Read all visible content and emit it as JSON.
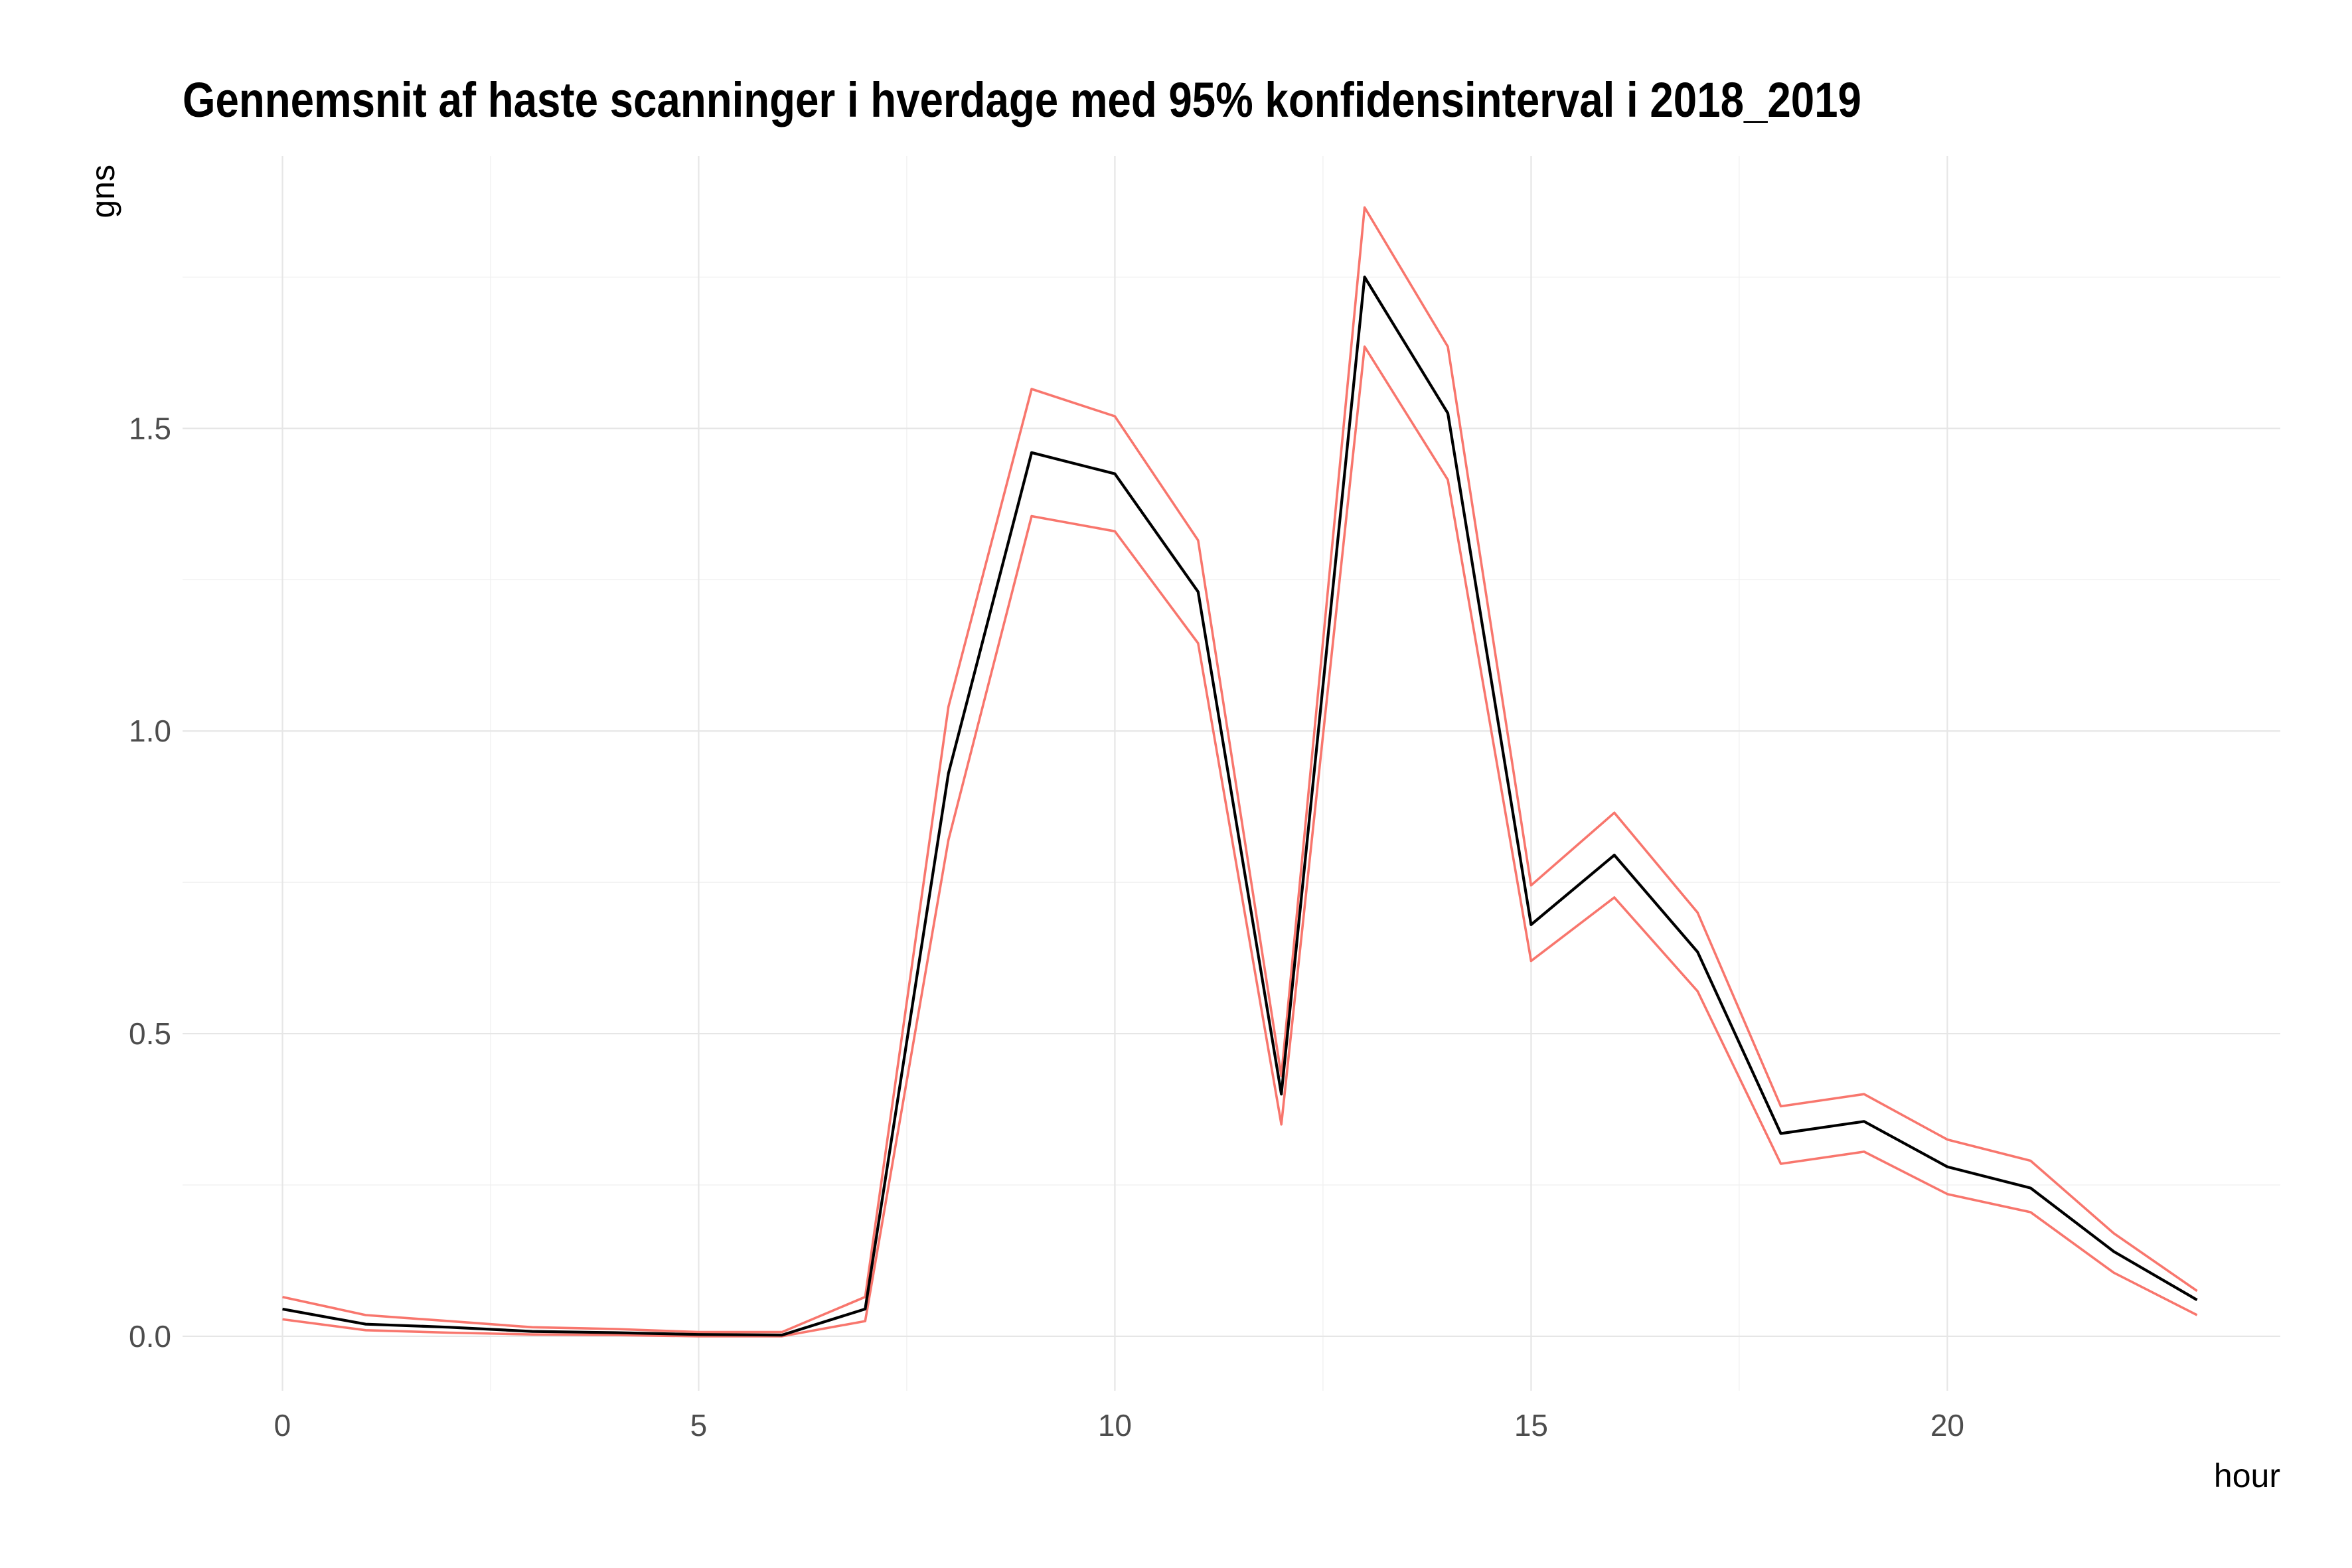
{
  "chart_data": {
    "type": "line",
    "title": "Gennemsnit af haste scanninger i hverdage med 95% konfidensinterval i 2018_2019",
    "xlabel": "hour",
    "ylabel": "gns",
    "xlim": [
      -1.2,
      24
    ],
    "ylim": [
      -0.09,
      1.95
    ],
    "x_ticks": [
      0,
      5,
      10,
      15,
      20
    ],
    "x_tick_labels": [
      "0",
      "5",
      "10",
      "15",
      "20"
    ],
    "y_ticks": [
      0.0,
      0.5,
      1.0,
      1.5
    ],
    "y_tick_labels": [
      "0.0",
      "0.5",
      "1.0",
      "1.5"
    ],
    "grid": true,
    "x": [
      0,
      1,
      2,
      3,
      4,
      5,
      6,
      7,
      8,
      9,
      10,
      11,
      12,
      13,
      14,
      15,
      16,
      17,
      18,
      19,
      20,
      21,
      22,
      23
    ],
    "series": [
      {
        "role": "mean",
        "color": "#000000",
        "values": [
          0.045,
          0.02,
          0.015,
          0.008,
          0.006,
          0.003,
          0.002,
          0.045,
          0.93,
          1.46,
          1.425,
          1.23,
          0.4,
          1.75,
          1.525,
          0.68,
          0.795,
          0.635,
          0.335,
          0.355,
          0.28,
          0.245,
          0.14,
          0.06
        ]
      },
      {
        "role": "upper",
        "color": "#f8766d",
        "values": [
          0.065,
          0.035,
          0.025,
          0.015,
          0.012,
          0.007,
          0.007,
          0.065,
          1.04,
          1.565,
          1.52,
          1.315,
          0.43,
          1.865,
          1.635,
          0.745,
          0.865,
          0.7,
          0.38,
          0.4,
          0.325,
          0.29,
          0.17,
          0.075
        ]
      },
      {
        "role": "lower",
        "color": "#f8766d",
        "values": [
          0.028,
          0.01,
          0.006,
          0.003,
          0.002,
          0.0,
          0.0,
          0.025,
          0.82,
          1.355,
          1.33,
          1.145,
          0.35,
          1.635,
          1.415,
          0.62,
          0.725,
          0.57,
          0.285,
          0.305,
          0.235,
          0.205,
          0.105,
          0.035
        ]
      }
    ]
  }
}
